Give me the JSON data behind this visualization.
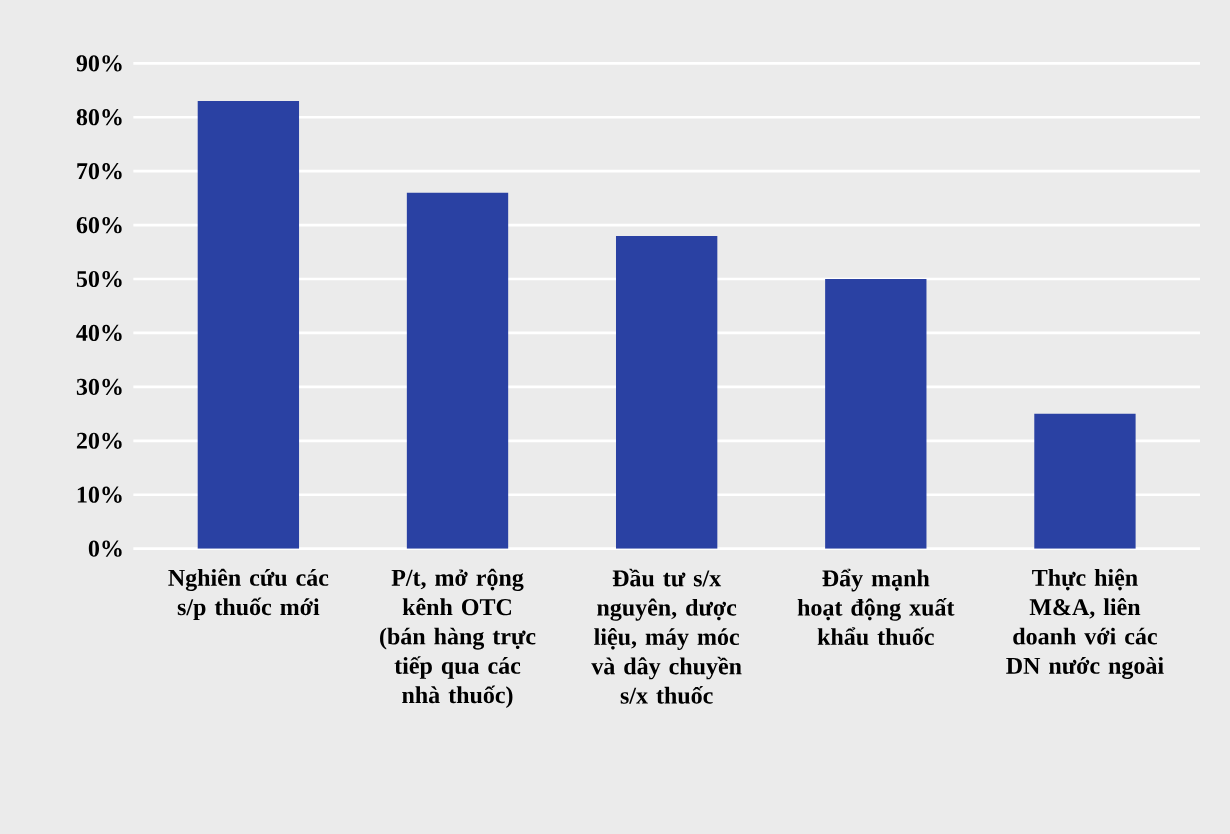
{
  "chart_data": {
    "type": "bar",
    "categories": [
      "Nghiên cứu các s/p thuốc mới",
      "P/t, mở rộng kênh OTC (bán hàng trực tiếp qua các nhà thuốc)",
      "Đầu tư s/x nguyên, dược liệu, máy móc và dây chuyền s/x thuốc",
      "Đẩy mạnh hoạt động xuất khẩu thuốc",
      "Thực hiện M&A, liên doanh với các DN nước ngoài"
    ],
    "values": [
      83,
      66,
      58,
      50,
      25
    ],
    "color": "#2a41a3",
    "ylim": [
      0,
      90
    ],
    "yticks": [
      {
        "value": 0,
        "label": "0%"
      },
      {
        "value": 10,
        "label": "10%"
      },
      {
        "value": 20,
        "label": "20%"
      },
      {
        "value": 30,
        "label": "30%"
      },
      {
        "value": 40,
        "label": "40%"
      },
      {
        "value": 50,
        "label": "50%"
      },
      {
        "value": 60,
        "label": "60%"
      },
      {
        "value": 70,
        "label": "70%"
      },
      {
        "value": 80,
        "label": "80%"
      },
      {
        "value": 90,
        "label": "90%"
      }
    ],
    "grid": "y"
  }
}
